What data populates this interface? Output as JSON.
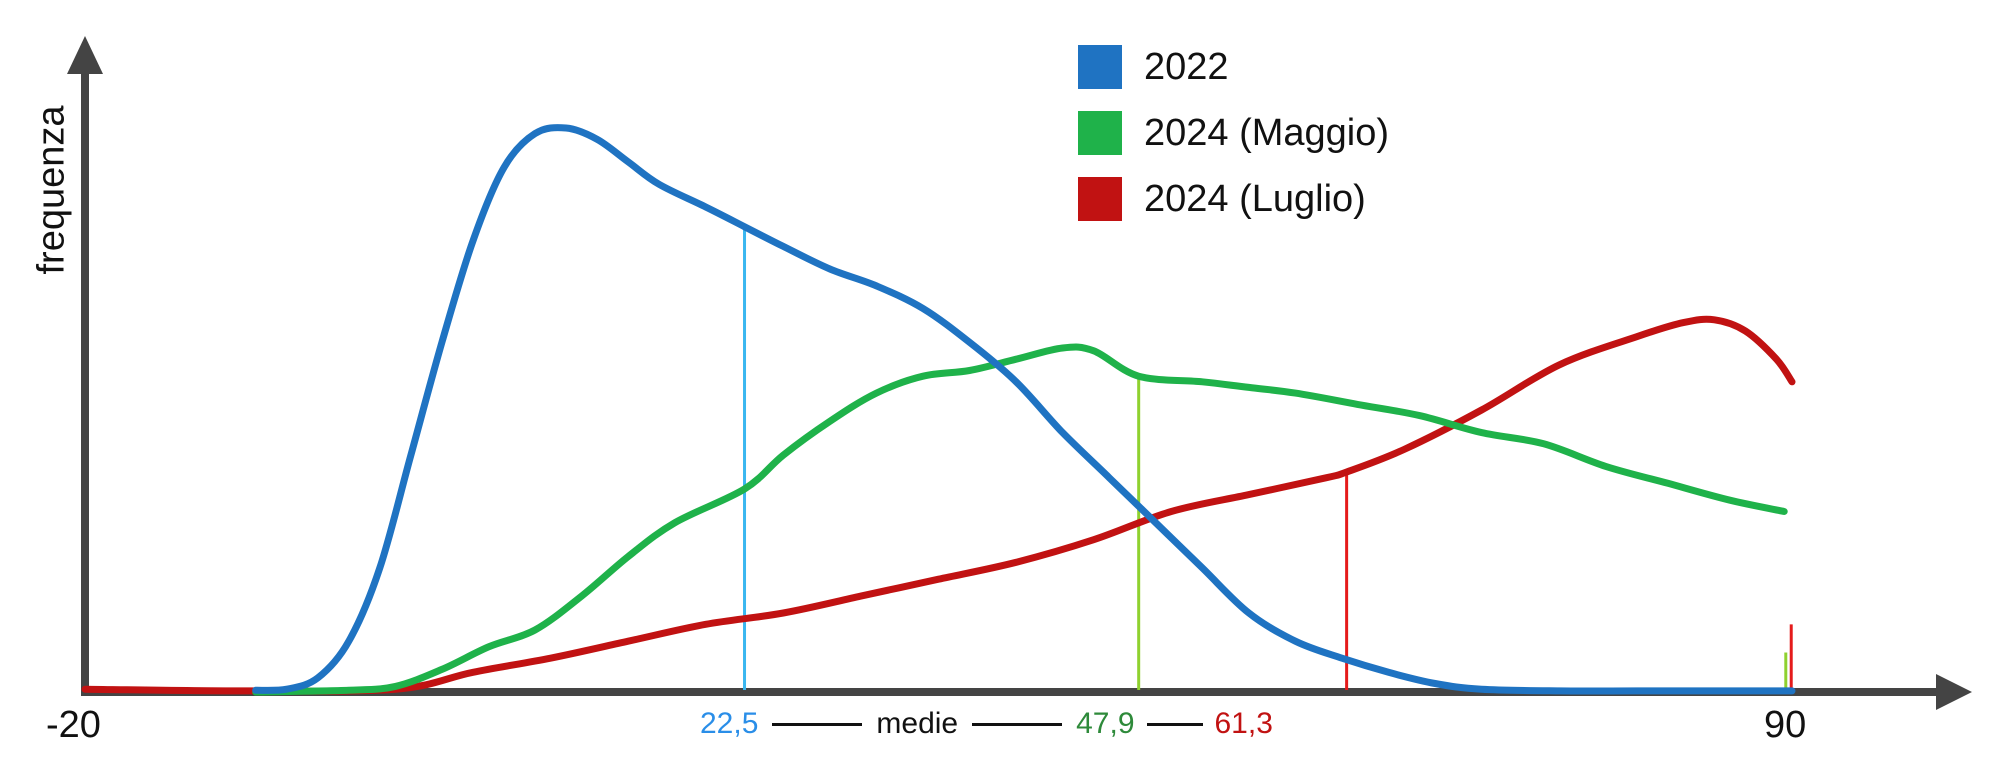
{
  "chart_data": {
    "type": "line",
    "title": "",
    "xlabel": "",
    "ylabel": "frequenza",
    "xlim": [
      -20,
      95
    ],
    "ylim": [
      0,
      1.0
    ],
    "x_ticks": [
      "-20",
      "90"
    ],
    "grid": false,
    "legend_position": "top-center",
    "series": [
      {
        "name": "2022",
        "color": "#1f73c2",
        "mean": 22.5,
        "points": [
          [
            -9,
            0.003
          ],
          [
            -7,
            0.005
          ],
          [
            -5,
            0.025
          ],
          [
            -3,
            0.09
          ],
          [
            -1,
            0.22
          ],
          [
            1,
            0.42
          ],
          [
            3,
            0.62
          ],
          [
            5,
            0.8
          ],
          [
            7,
            0.93
          ],
          [
            9,
            0.99
          ],
          [
            11,
            1.0
          ],
          [
            13,
            0.98
          ],
          [
            15,
            0.94
          ],
          [
            17,
            0.9
          ],
          [
            20,
            0.86
          ],
          [
            22.5,
            0.825
          ],
          [
            25,
            0.79
          ],
          [
            28,
            0.75
          ],
          [
            31,
            0.72
          ],
          [
            34,
            0.68
          ],
          [
            37,
            0.62
          ],
          [
            40,
            0.55
          ],
          [
            43,
            0.46
          ],
          [
            46,
            0.38
          ],
          [
            49,
            0.3
          ],
          [
            52,
            0.22
          ],
          [
            55,
            0.14
          ],
          [
            58,
            0.09
          ],
          [
            61,
            0.06
          ],
          [
            64,
            0.035
          ],
          [
            67,
            0.015
          ],
          [
            70,
            0.005
          ],
          [
            75,
            0.002
          ],
          [
            80,
            0.002
          ],
          [
            85,
            0.002
          ],
          [
            90,
            0.002
          ]
        ]
      },
      {
        "name": "2024 (Maggio)",
        "color": "#1fb24a",
        "mean": 47.9,
        "points": [
          [
            -9,
            0.0
          ],
          [
            -3,
            0.003
          ],
          [
            0,
            0.01
          ],
          [
            3,
            0.04
          ],
          [
            6,
            0.08
          ],
          [
            9,
            0.11
          ],
          [
            12,
            0.17
          ],
          [
            15,
            0.24
          ],
          [
            18,
            0.3
          ],
          [
            22.5,
            0.36
          ],
          [
            25,
            0.42
          ],
          [
            28,
            0.48
          ],
          [
            31,
            0.53
          ],
          [
            34,
            0.56
          ],
          [
            37,
            0.57
          ],
          [
            40,
            0.59
          ],
          [
            43,
            0.61
          ],
          [
            45,
            0.605
          ],
          [
            47.9,
            0.56
          ],
          [
            52,
            0.55
          ],
          [
            55,
            0.54
          ],
          [
            58,
            0.53
          ],
          [
            62,
            0.51
          ],
          [
            66,
            0.49
          ],
          [
            70,
            0.46
          ],
          [
            74,
            0.44
          ],
          [
            78,
            0.4
          ],
          [
            82,
            0.37
          ],
          [
            86,
            0.34
          ],
          [
            89.5,
            0.32
          ]
        ]
      },
      {
        "name": "2024 (Luglio)",
        "color": "#c11212",
        "mean": 61.3,
        "points": [
          [
            -20,
            0.005
          ],
          [
            -10,
            0.002
          ],
          [
            0,
            0.005
          ],
          [
            5,
            0.035
          ],
          [
            10,
            0.06
          ],
          [
            15,
            0.09
          ],
          [
            20,
            0.12
          ],
          [
            25,
            0.14
          ],
          [
            30,
            0.17
          ],
          [
            35,
            0.2
          ],
          [
            40,
            0.23
          ],
          [
            45,
            0.27
          ],
          [
            50,
            0.32
          ],
          [
            55,
            0.35
          ],
          [
            60,
            0.38
          ],
          [
            61.3,
            0.39
          ],
          [
            65,
            0.43
          ],
          [
            70,
            0.5
          ],
          [
            75,
            0.58
          ],
          [
            80,
            0.63
          ],
          [
            83,
            0.655
          ],
          [
            85,
            0.66
          ],
          [
            87,
            0.64
          ],
          [
            89,
            0.59
          ],
          [
            90,
            0.55
          ]
        ]
      }
    ],
    "means_label": "medie",
    "mean_labels": [
      {
        "text": "22,5",
        "color": "#2a8ee8"
      },
      {
        "text": "47,9",
        "color": "#2e8a3a"
      },
      {
        "text": "61,3",
        "color": "#c11212"
      }
    ],
    "mean_line_colors": [
      "#3ab7f0",
      "#8fd12f",
      "#e51b1b"
    ],
    "spikes_at_90": [
      {
        "color": "#8fd12f",
        "value": 0.07
      },
      {
        "color": "#e51b1b",
        "value": 0.12
      }
    ]
  }
}
